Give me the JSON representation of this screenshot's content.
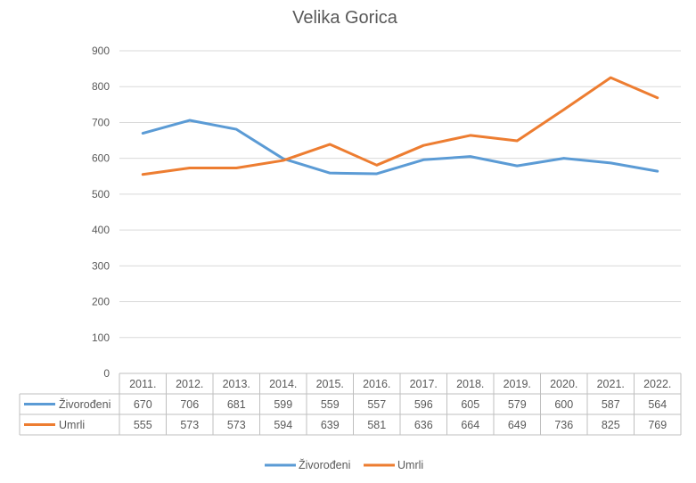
{
  "chart_data": {
    "type": "line",
    "title": "Velika Gorica",
    "categories": [
      "2011.",
      "2012.",
      "2013.",
      "2014.",
      "2015.",
      "2016.",
      "2017.",
      "2018.",
      "2019.",
      "2020.",
      "2021.",
      "2022."
    ],
    "series": [
      {
        "name": "Živorođeni",
        "color": "#5B9BD5",
        "values": [
          670,
          706,
          681,
          599,
          559,
          557,
          596,
          605,
          579,
          600,
          587,
          564
        ]
      },
      {
        "name": "Umrli",
        "color": "#ED7D31",
        "values": [
          555,
          573,
          573,
          594,
          639,
          581,
          636,
          664,
          649,
          736,
          825,
          769
        ]
      }
    ],
    "yticks": [
      0,
      100,
      200,
      300,
      400,
      500,
      600,
      700,
      800,
      900
    ],
    "ylim": [
      0,
      900
    ],
    "grid": true,
    "data_table": true,
    "legend_position": "bottom"
  }
}
